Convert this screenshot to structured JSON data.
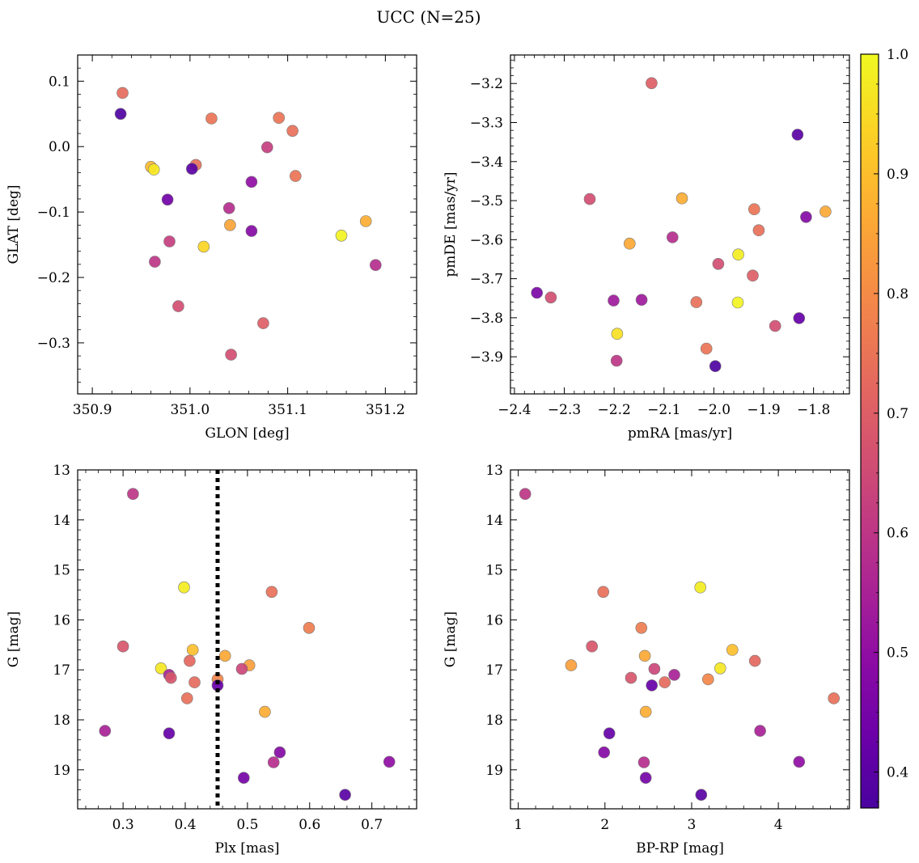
{
  "title": "UCC (N=25)",
  "colorbar": {
    "cmap": "plasma",
    "vmin": 0.37,
    "vmax": 1.0,
    "ticks": [
      0.4,
      0.5,
      0.6,
      0.7,
      0.8,
      0.9,
      1.0
    ],
    "tick_labels": [
      "0.4",
      "0.5",
      "0.6",
      "0.7",
      "0.8",
      "0.9",
      "1.0"
    ]
  },
  "chart_data": [
    {
      "type": "scatter",
      "id": "glon-glat",
      "xlabel": "GLON [deg]",
      "ylabel": "GLAT [deg]",
      "xlim": [
        350.885,
        351.232
      ],
      "ylim": [
        -0.378,
        0.14
      ],
      "xticks": [
        350.9,
        351.0,
        351.1,
        351.2
      ],
      "xtick_labels": [
        "350.9",
        "351.0",
        "351.1",
        "351.2"
      ],
      "yticks": [
        0.1,
        0.0,
        -0.1,
        -0.2,
        -0.3
      ],
      "ytick_labels": [
        "0.1",
        "0.0",
        "−0.1",
        "−0.2",
        "−0.3"
      ],
      "y_inverted": false,
      "points": [
        {
          "x": 350.931,
          "y": 0.082,
          "c": 0.73
        },
        {
          "x": 350.929,
          "y": 0.05,
          "c": 0.38
        },
        {
          "x": 350.96,
          "y": -0.031,
          "c": 0.89
        },
        {
          "x": 350.963,
          "y": -0.035,
          "c": 0.97
        },
        {
          "x": 351.006,
          "y": -0.028,
          "c": 0.74
        },
        {
          "x": 351.002,
          "y": -0.034,
          "c": 0.4
        },
        {
          "x": 351.022,
          "y": 0.043,
          "c": 0.75
        },
        {
          "x": 351.091,
          "y": 0.044,
          "c": 0.75
        },
        {
          "x": 351.105,
          "y": 0.024,
          "c": 0.74
        },
        {
          "x": 351.079,
          "y": -0.001,
          "c": 0.62
        },
        {
          "x": 351.063,
          "y": -0.054,
          "c": 0.5
        },
        {
          "x": 351.108,
          "y": -0.045,
          "c": 0.75
        },
        {
          "x": 350.977,
          "y": -0.081,
          "c": 0.44
        },
        {
          "x": 351.04,
          "y": -0.094,
          "c": 0.58
        },
        {
          "x": 351.041,
          "y": -0.12,
          "c": 0.85
        },
        {
          "x": 351.063,
          "y": -0.129,
          "c": 0.48
        },
        {
          "x": 351.18,
          "y": -0.114,
          "c": 0.87
        },
        {
          "x": 351.155,
          "y": -0.136,
          "c": 0.99
        },
        {
          "x": 350.979,
          "y": -0.145,
          "c": 0.62
        },
        {
          "x": 351.014,
          "y": -0.153,
          "c": 0.94
        },
        {
          "x": 350.964,
          "y": -0.176,
          "c": 0.6
        },
        {
          "x": 351.19,
          "y": -0.181,
          "c": 0.58
        },
        {
          "x": 350.988,
          "y": -0.244,
          "c": 0.66
        },
        {
          "x": 351.075,
          "y": -0.27,
          "c": 0.7
        },
        {
          "x": 351.042,
          "y": -0.318,
          "c": 0.66
        }
      ]
    },
    {
      "type": "scatter",
      "id": "pmra-pmde",
      "xlabel": "pmRA [mas/yr]",
      "ylabel": "pmDE [mas/yr]",
      "xlim": [
        -2.408,
        -1.728
      ],
      "ylim": [
        -3.995,
        -3.127
      ],
      "xticks": [
        -2.4,
        -2.3,
        -2.2,
        -2.1,
        -2.0,
        -1.9,
        -1.8
      ],
      "xtick_labels": [
        "−2.4",
        "−2.3",
        "−2.2",
        "−2.1",
        "−2.0",
        "−1.9",
        "−1.8"
      ],
      "yticks": [
        -3.2,
        -3.3,
        -3.4,
        -3.5,
        -3.6,
        -3.7,
        -3.8,
        -3.9
      ],
      "ytick_labels": [
        "−3.2",
        "−3.3",
        "−3.4",
        "−3.5",
        "−3.6",
        "−3.7",
        "−3.8",
        "−3.9"
      ],
      "y_inverted": false,
      "points": [
        {
          "x": -2.125,
          "y": -3.199,
          "c": 0.7
        },
        {
          "x": -1.832,
          "y": -3.331,
          "c": 0.4
        },
        {
          "x": -2.249,
          "y": -3.496,
          "c": 0.66
        },
        {
          "x": -2.064,
          "y": -3.494,
          "c": 0.87
        },
        {
          "x": -1.919,
          "y": -3.522,
          "c": 0.75
        },
        {
          "x": -1.815,
          "y": -3.542,
          "c": 0.48
        },
        {
          "x": -1.776,
          "y": -3.528,
          "c": 0.86
        },
        {
          "x": -1.91,
          "y": -3.576,
          "c": 0.74
        },
        {
          "x": -2.169,
          "y": -3.61,
          "c": 0.86
        },
        {
          "x": -2.083,
          "y": -3.594,
          "c": 0.58
        },
        {
          "x": -1.951,
          "y": -3.638,
          "c": 0.98
        },
        {
          "x": -1.991,
          "y": -3.662,
          "c": 0.66
        },
        {
          "x": -1.922,
          "y": -3.692,
          "c": 0.7
        },
        {
          "x": -2.355,
          "y": -3.736,
          "c": 0.46
        },
        {
          "x": -2.327,
          "y": -3.748,
          "c": 0.66
        },
        {
          "x": -2.201,
          "y": -3.756,
          "c": 0.53
        },
        {
          "x": -2.145,
          "y": -3.754,
          "c": 0.53
        },
        {
          "x": -2.035,
          "y": -3.76,
          "c": 0.74
        },
        {
          "x": -1.952,
          "y": -3.761,
          "c": 0.99
        },
        {
          "x": -1.877,
          "y": -3.821,
          "c": 0.66
        },
        {
          "x": -1.829,
          "y": -3.801,
          "c": 0.42
        },
        {
          "x": -2.194,
          "y": -3.841,
          "c": 0.96
        },
        {
          "x": -2.015,
          "y": -3.879,
          "c": 0.75
        },
        {
          "x": -2.195,
          "y": -3.91,
          "c": 0.6
        },
        {
          "x": -1.997,
          "y": -3.924,
          "c": 0.38
        }
      ]
    },
    {
      "type": "scatter",
      "id": "plx-g",
      "xlabel": "Plx [mas]",
      "ylabel": "G [mag]",
      "xlim": [
        0.227,
        0.772
      ],
      "ylim": [
        19.78,
        13.0
      ],
      "xticks": [
        0.3,
        0.4,
        0.5,
        0.6,
        0.7
      ],
      "xtick_labels": [
        "0.3",
        "0.4",
        "0.5",
        "0.6",
        "0.7"
      ],
      "yticks": [
        13,
        14,
        15,
        16,
        17,
        18,
        19
      ],
      "ytick_labels": [
        "13",
        "14",
        "15",
        "16",
        "17",
        "18",
        "19"
      ],
      "y_inverted": true,
      "vline": {
        "x": 0.452,
        "style": "dotted"
      },
      "points": [
        {
          "x": 0.316,
          "y": 13.48,
          "c": 0.6
        },
        {
          "x": 0.398,
          "y": 15.35,
          "c": 0.98
        },
        {
          "x": 0.539,
          "y": 15.44,
          "c": 0.74
        },
        {
          "x": 0.599,
          "y": 16.16,
          "c": 0.77
        },
        {
          "x": 0.3,
          "y": 16.53,
          "c": 0.68
        },
        {
          "x": 0.412,
          "y": 16.6,
          "c": 0.9
        },
        {
          "x": 0.464,
          "y": 16.72,
          "c": 0.86
        },
        {
          "x": 0.407,
          "y": 16.82,
          "c": 0.72
        },
        {
          "x": 0.503,
          "y": 16.91,
          "c": 0.84
        },
        {
          "x": 0.491,
          "y": 16.98,
          "c": 0.64
        },
        {
          "x": 0.361,
          "y": 16.97,
          "c": 0.97
        },
        {
          "x": 0.374,
          "y": 17.1,
          "c": 0.55
        },
        {
          "x": 0.377,
          "y": 17.16,
          "c": 0.68
        },
        {
          "x": 0.415,
          "y": 17.25,
          "c": 0.73
        },
        {
          "x": 0.452,
          "y": 17.19,
          "c": 0.79
        },
        {
          "x": 0.452,
          "y": 17.31,
          "c": 0.42
        },
        {
          "x": 0.403,
          "y": 17.57,
          "c": 0.74
        },
        {
          "x": 0.528,
          "y": 17.84,
          "c": 0.87
        },
        {
          "x": 0.271,
          "y": 18.22,
          "c": 0.55
        },
        {
          "x": 0.374,
          "y": 18.27,
          "c": 0.42
        },
        {
          "x": 0.552,
          "y": 18.65,
          "c": 0.48
        },
        {
          "x": 0.542,
          "y": 18.85,
          "c": 0.58
        },
        {
          "x": 0.728,
          "y": 18.84,
          "c": 0.5
        },
        {
          "x": 0.494,
          "y": 19.16,
          "c": 0.45
        },
        {
          "x": 0.657,
          "y": 19.5,
          "c": 0.4
        }
      ]
    },
    {
      "type": "scatter",
      "id": "bprp-g",
      "xlabel": "BP-RP [mag]",
      "ylabel": "G [mag]",
      "xlim": [
        0.91,
        4.82
      ],
      "ylim": [
        19.78,
        13.0
      ],
      "xticks": [
        1,
        2,
        3,
        4
      ],
      "xtick_labels": [
        "1",
        "2",
        "3",
        "4"
      ],
      "yticks": [
        13,
        14,
        15,
        16,
        17,
        18,
        19
      ],
      "ytick_labels": [
        "13",
        "14",
        "15",
        "16",
        "17",
        "18",
        "19"
      ],
      "y_inverted": true,
      "points": [
        {
          "x": 1.08,
          "y": 13.48,
          "c": 0.6
        },
        {
          "x": 3.1,
          "y": 15.35,
          "c": 0.98
        },
        {
          "x": 1.98,
          "y": 15.44,
          "c": 0.74
        },
        {
          "x": 2.42,
          "y": 16.16,
          "c": 0.77
        },
        {
          "x": 1.85,
          "y": 16.53,
          "c": 0.68
        },
        {
          "x": 3.47,
          "y": 16.6,
          "c": 0.9
        },
        {
          "x": 2.46,
          "y": 16.72,
          "c": 0.86
        },
        {
          "x": 3.73,
          "y": 16.82,
          "c": 0.72
        },
        {
          "x": 1.61,
          "y": 16.91,
          "c": 0.84
        },
        {
          "x": 2.57,
          "y": 16.98,
          "c": 0.64
        },
        {
          "x": 3.33,
          "y": 16.97,
          "c": 0.97
        },
        {
          "x": 2.8,
          "y": 17.1,
          "c": 0.55
        },
        {
          "x": 2.3,
          "y": 17.16,
          "c": 0.68
        },
        {
          "x": 2.69,
          "y": 17.25,
          "c": 0.73
        },
        {
          "x": 3.19,
          "y": 17.19,
          "c": 0.79
        },
        {
          "x": 2.54,
          "y": 17.31,
          "c": 0.42
        },
        {
          "x": 4.64,
          "y": 17.57,
          "c": 0.74
        },
        {
          "x": 2.47,
          "y": 17.84,
          "c": 0.87
        },
        {
          "x": 3.79,
          "y": 18.22,
          "c": 0.55
        },
        {
          "x": 2.05,
          "y": 18.27,
          "c": 0.42
        },
        {
          "x": 1.99,
          "y": 18.65,
          "c": 0.48
        },
        {
          "x": 2.45,
          "y": 18.85,
          "c": 0.58
        },
        {
          "x": 4.24,
          "y": 18.84,
          "c": 0.5
        },
        {
          "x": 2.47,
          "y": 19.16,
          "c": 0.45
        },
        {
          "x": 3.11,
          "y": 19.5,
          "c": 0.4
        }
      ]
    }
  ]
}
